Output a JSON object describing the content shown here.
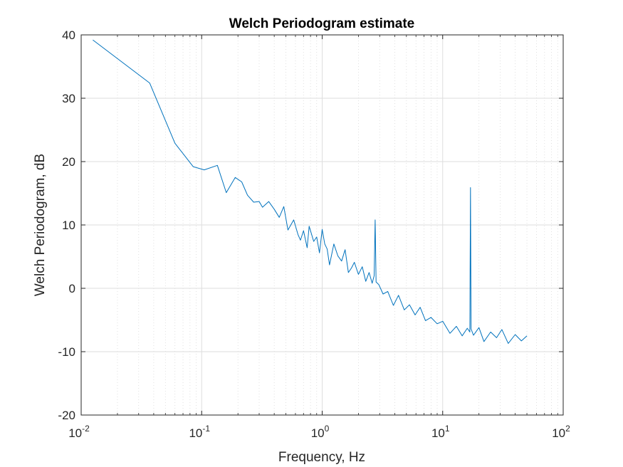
{
  "chart_data": {
    "type": "line",
    "title": "Welch Periodogram estimate",
    "xlabel": "Frequency, Hz",
    "ylabel": "Welch Periodogram, dB",
    "xscale": "log",
    "xlim": [
      0.01,
      100
    ],
    "ylim": [
      -20,
      40
    ],
    "grid": true,
    "minor_grid": true,
    "line_color": "#0072BD",
    "x_ticks": [
      {
        "base": "10",
        "exp": "-2"
      },
      {
        "base": "10",
        "exp": "-1"
      },
      {
        "base": "10",
        "exp": "0"
      },
      {
        "base": "10",
        "exp": "1"
      },
      {
        "base": "10",
        "exp": "2"
      }
    ],
    "y_ticks": [
      "-20",
      "-10",
      "0",
      "10",
      "20",
      "30",
      "40"
    ],
    "series": [
      {
        "x": [
          0.0125,
          0.037,
          0.06,
          0.085,
          0.105,
          0.135,
          0.16,
          0.19,
          0.215,
          0.24,
          0.27,
          0.3,
          0.32,
          0.36,
          0.4,
          0.44,
          0.48,
          0.52,
          0.58,
          0.63,
          0.66,
          0.7,
          0.75,
          0.78,
          0.85,
          0.9,
          0.95,
          1.0,
          1.05,
          1.1,
          1.15,
          1.25,
          1.35,
          1.45,
          1.55,
          1.65,
          1.75,
          1.85,
          2.0,
          2.15,
          2.3,
          2.45,
          2.6,
          2.7,
          2.75,
          2.8,
          2.95,
          3.2,
          3.5,
          3.9,
          4.3,
          4.8,
          5.3,
          5.9,
          6.5,
          7.2,
          8.0,
          9.0,
          10.0,
          11.5,
          13.0,
          14.5,
          16.0,
          16.8,
          17.0,
          17.2,
          18.0,
          20.0,
          22.0,
          25.0,
          28.0,
          31.0,
          35.0,
          40.0,
          45.0,
          50.0
        ],
        "y": [
          39.2,
          32.4,
          22.9,
          19.2,
          18.7,
          19.4,
          15.1,
          17.5,
          16.8,
          14.7,
          13.6,
          13.7,
          12.8,
          13.7,
          12.5,
          11.2,
          12.9,
          9.2,
          10.8,
          8.5,
          7.6,
          9.1,
          6.4,
          9.8,
          7.4,
          8.1,
          5.6,
          9.3,
          7.0,
          6.2,
          3.7,
          7.0,
          5.1,
          4.3,
          6.1,
          2.5,
          3.2,
          4.1,
          2.2,
          3.4,
          1.1,
          2.5,
          0.8,
          2.0,
          10.8,
          1.0,
          0.6,
          -0.9,
          -0.5,
          -2.7,
          -1.1,
          -3.4,
          -2.6,
          -4.2,
          -3.0,
          -5.1,
          -4.6,
          -5.6,
          -5.2,
          -7.1,
          -6.0,
          -7.5,
          -6.3,
          -6.9,
          15.9,
          -6.4,
          -7.4,
          -6.2,
          -8.4,
          -6.9,
          -7.8,
          -6.5,
          -8.7,
          -7.3,
          -8.3,
          -7.5
        ]
      }
    ]
  }
}
